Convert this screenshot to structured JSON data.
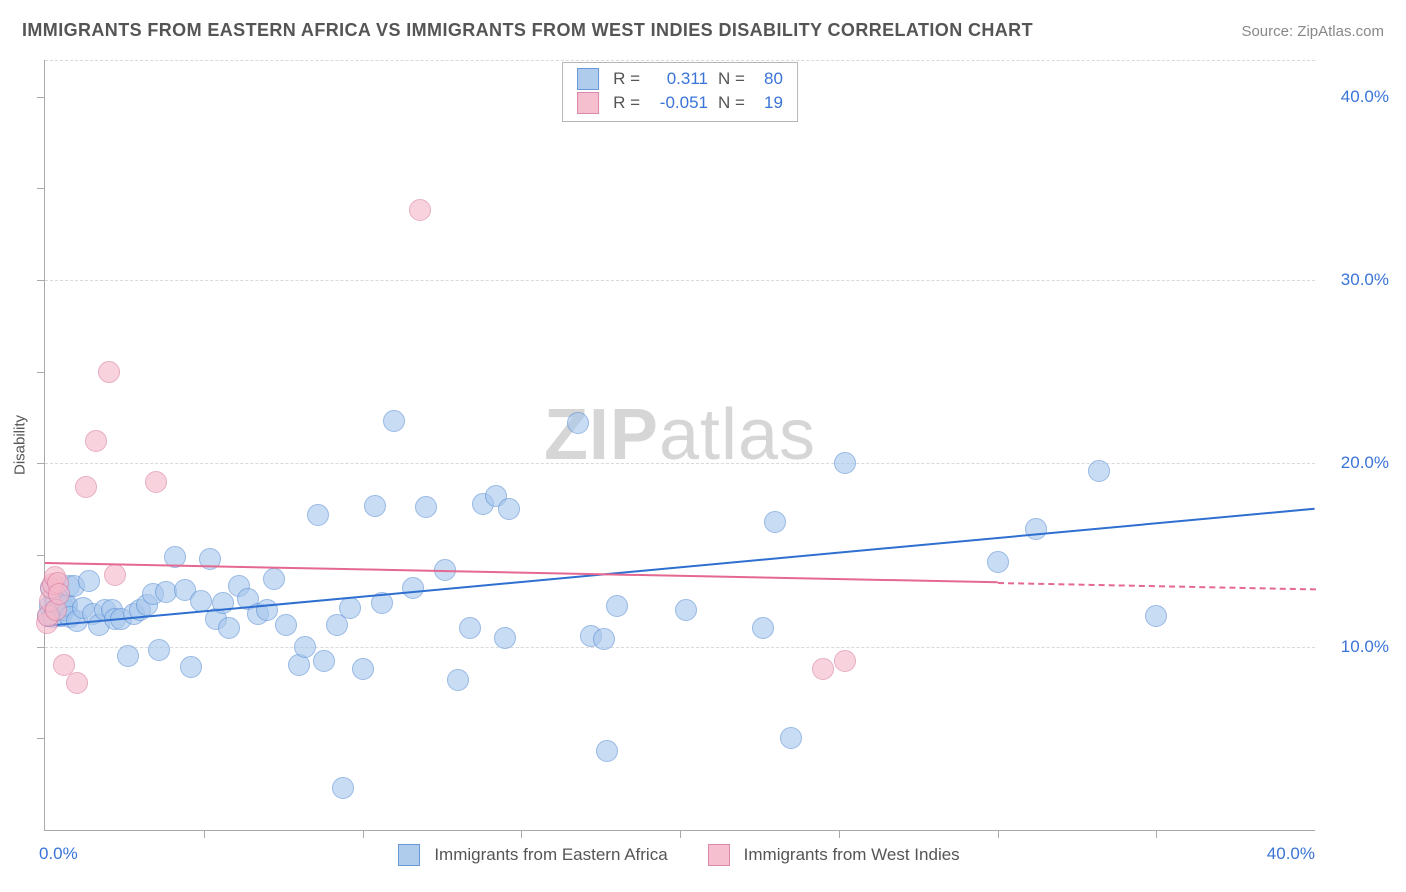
{
  "title": "IMMIGRANTS FROM EASTERN AFRICA VS IMMIGRANTS FROM WEST INDIES DISABILITY CORRELATION CHART",
  "source": "Source: ZipAtlas.com",
  "y_axis_label": "Disability",
  "watermark": {
    "part1": "ZIP",
    "part2": "atlas"
  },
  "chart": {
    "type": "scatter",
    "xlim": [
      0,
      40
    ],
    "ylim": [
      0,
      42
    ],
    "x_ticks_minor": [
      5,
      10,
      15,
      20,
      25,
      30,
      35
    ],
    "y_ticks_minor": [
      5,
      15,
      25,
      35
    ],
    "x_tick_labels": [
      {
        "value": 0,
        "text": "0.0%",
        "pos": "left"
      },
      {
        "value": 40,
        "text": "40.0%",
        "pos": "right"
      }
    ],
    "y_tick_labels": [
      {
        "value": 10,
        "text": "10.0%"
      },
      {
        "value": 20,
        "text": "20.0%"
      },
      {
        "value": 30,
        "text": "30.0%"
      },
      {
        "value": 40,
        "text": "40.0%"
      }
    ],
    "grid_y": [
      10,
      20,
      30,
      42
    ],
    "grid_color": "#d9d9d9",
    "background_color": "#ffffff",
    "axis_color": "#a9a9a9",
    "marker_radius": 10,
    "series": [
      {
        "name": "Immigrants from Eastern Africa",
        "fill": "#a7c7ec",
        "stroke": "#5a8fd6",
        "fill_opacity": 0.62,
        "trend": {
          "y_at_x0": 11.2,
          "y_at_x40": 17.6,
          "solid_to_x": 40,
          "color": "#2e6fd0",
          "width": 2
        },
        "stats": {
          "R": "0.311",
          "N": "80"
        },
        "points": [
          [
            0.1,
            11.7
          ],
          [
            0.15,
            12.2
          ],
          [
            0.2,
            13.2
          ],
          [
            0.25,
            11.6
          ],
          [
            0.3,
            12.0
          ],
          [
            0.35,
            12.5
          ],
          [
            0.4,
            13.0
          ],
          [
            0.45,
            12.0
          ],
          [
            0.5,
            11.7
          ],
          [
            0.55,
            12.3
          ],
          [
            0.6,
            12.0
          ],
          [
            0.65,
            12.2
          ],
          [
            0.7,
            12.3
          ],
          [
            0.75,
            13.3
          ],
          [
            0.8,
            11.6
          ],
          [
            0.9,
            13.3
          ],
          [
            1.0,
            11.4
          ],
          [
            1.2,
            12.1
          ],
          [
            1.4,
            13.6
          ],
          [
            1.5,
            11.8
          ],
          [
            1.7,
            11.2
          ],
          [
            1.9,
            12.0
          ],
          [
            2.1,
            12.0
          ],
          [
            2.2,
            11.5
          ],
          [
            2.4,
            11.5
          ],
          [
            2.6,
            9.5
          ],
          [
            2.8,
            11.8
          ],
          [
            3.0,
            12.0
          ],
          [
            3.2,
            12.3
          ],
          [
            3.4,
            12.9
          ],
          [
            3.6,
            9.8
          ],
          [
            3.8,
            13.0
          ],
          [
            4.1,
            14.9
          ],
          [
            4.4,
            13.1
          ],
          [
            4.6,
            8.9
          ],
          [
            4.9,
            12.5
          ],
          [
            5.2,
            14.8
          ],
          [
            5.4,
            11.5
          ],
          [
            5.6,
            12.4
          ],
          [
            5.8,
            11.0
          ],
          [
            6.1,
            13.3
          ],
          [
            6.4,
            12.6
          ],
          [
            6.7,
            11.8
          ],
          [
            7.0,
            12.0
          ],
          [
            7.2,
            13.7
          ],
          [
            7.6,
            11.2
          ],
          [
            8.0,
            9.0
          ],
          [
            8.2,
            10.0
          ],
          [
            8.6,
            17.2
          ],
          [
            8.8,
            9.2
          ],
          [
            9.2,
            11.2
          ],
          [
            9.4,
            2.3
          ],
          [
            9.6,
            12.1
          ],
          [
            10.0,
            8.8
          ],
          [
            10.4,
            17.7
          ],
          [
            10.6,
            12.4
          ],
          [
            11.0,
            22.3
          ],
          [
            11.6,
            13.2
          ],
          [
            12.0,
            17.6
          ],
          [
            12.6,
            14.2
          ],
          [
            13.0,
            8.2
          ],
          [
            13.4,
            11.0
          ],
          [
            13.8,
            17.8
          ],
          [
            14.2,
            18.2
          ],
          [
            14.5,
            10.5
          ],
          [
            14.6,
            17.5
          ],
          [
            16.8,
            22.2
          ],
          [
            17.2,
            10.6
          ],
          [
            17.6,
            10.4
          ],
          [
            17.7,
            4.3
          ],
          [
            18.0,
            12.2
          ],
          [
            20.2,
            12.0
          ],
          [
            22.6,
            11.0
          ],
          [
            23.0,
            16.8
          ],
          [
            23.5,
            5.0
          ],
          [
            25.2,
            20.0
          ],
          [
            30.0,
            14.6
          ],
          [
            31.2,
            16.4
          ],
          [
            33.2,
            19.6
          ],
          [
            35.0,
            11.7
          ]
        ]
      },
      {
        "name": "Immigrants from West Indies",
        "fill": "#f5b9ca",
        "stroke": "#d97ca0",
        "fill_opacity": 0.62,
        "trend": {
          "y_at_x0": 14.6,
          "y_at_x40": 13.2,
          "solid_to_x": 30,
          "color": "#e46890",
          "width": 2
        },
        "stats": {
          "R": "-0.051",
          "N": "19"
        },
        "points": [
          [
            0.05,
            11.3
          ],
          [
            0.1,
            11.7
          ],
          [
            0.15,
            12.5
          ],
          [
            0.2,
            13.2
          ],
          [
            0.25,
            13.4
          ],
          [
            0.3,
            13.8
          ],
          [
            0.35,
            12.0
          ],
          [
            0.4,
            13.5
          ],
          [
            0.45,
            12.9
          ],
          [
            0.6,
            9.0
          ],
          [
            1.0,
            8.0
          ],
          [
            1.3,
            18.7
          ],
          [
            1.6,
            21.2
          ],
          [
            2.0,
            25.0
          ],
          [
            2.2,
            13.9
          ],
          [
            3.5,
            19.0
          ],
          [
            11.8,
            33.8
          ],
          [
            24.5,
            8.8
          ],
          [
            25.2,
            9.2
          ]
        ]
      }
    ]
  },
  "stats_box": {
    "r_label": "R =",
    "n_label": "N ="
  }
}
